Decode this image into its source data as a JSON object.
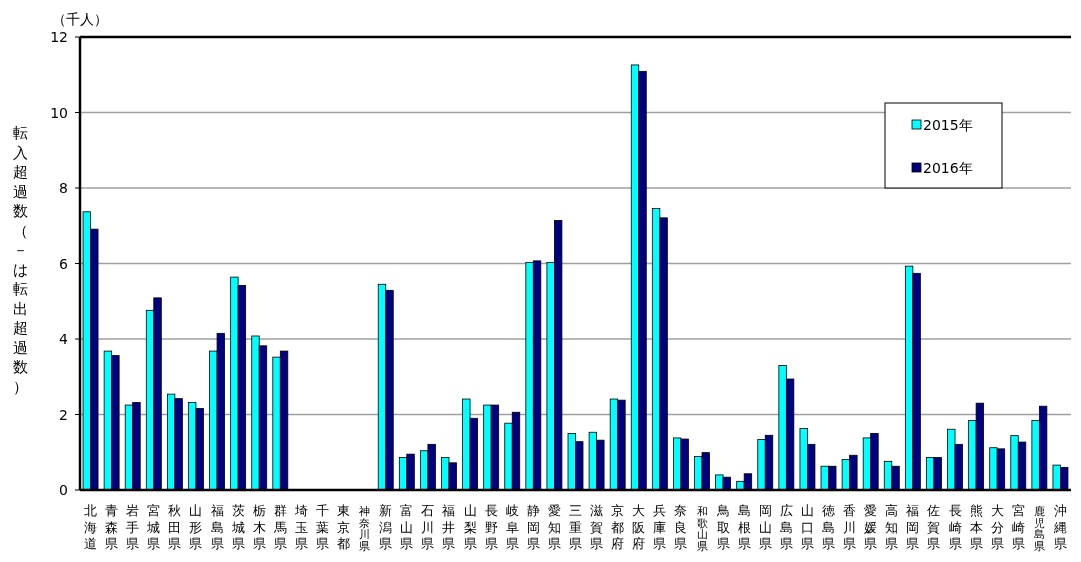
{
  "chart_data": {
    "type": "bar",
    "ylabel": "転入超過数（－は転出超過数）",
    "annotations": [
      "（千人）"
    ],
    "categories": [
      "北海道",
      "青森県",
      "岩手県",
      "宮城県",
      "秋田県",
      "山形県",
      "福島県",
      "茨城県",
      "栃木県",
      "群馬県",
      "埼玉県",
      "千葉県",
      "東京都",
      "神奈川県",
      "新潟県",
      "富山県",
      "石川県",
      "福井県",
      "山梨県",
      "長野県",
      "岐阜県",
      "静岡県",
      "愛知県",
      "三重県",
      "滋賀県",
      "京都府",
      "大阪府",
      "兵庫県",
      "奈良県",
      "和歌山県",
      "鳥取県",
      "島根県",
      "岡山県",
      "広島県",
      "山口県",
      "徳島県",
      "香川県",
      "愛媛県",
      "高知県",
      "福岡県",
      "佐賀県",
      "長崎県",
      "熊本県",
      "大分県",
      "宮崎県",
      "鹿児島県",
      "沖縄県"
    ],
    "series": [
      {
        "name": "2015年",
        "color": "#00ffff",
        "values": [
          7.37,
          3.68,
          2.25,
          4.76,
          2.54,
          2.32,
          3.68,
          5.64,
          4.08,
          3.52,
          null,
          null,
          null,
          null,
          5.45,
          0.86,
          1.04,
          0.86,
          2.41,
          2.25,
          1.77,
          6.03,
          6.03,
          1.5,
          1.53,
          2.41,
          11.26,
          7.46,
          1.38,
          0.89,
          0.4,
          0.23,
          1.34,
          3.3,
          1.63,
          0.63,
          0.81,
          1.38,
          0.76,
          5.93,
          0.86,
          1.61,
          1.84,
          1.12,
          1.44,
          1.84,
          0.66
        ]
      },
      {
        "name": "2016年",
        "color": "#000080",
        "values": [
          6.91,
          3.56,
          2.32,
          5.09,
          2.42,
          2.16,
          4.15,
          5.42,
          3.82,
          3.68,
          null,
          null,
          null,
          null,
          5.29,
          0.95,
          1.21,
          0.72,
          1.9,
          2.25,
          2.06,
          6.07,
          7.14,
          1.28,
          1.32,
          2.38,
          11.09,
          7.21,
          1.35,
          0.99,
          0.34,
          0.43,
          1.45,
          2.94,
          1.21,
          0.63,
          0.92,
          1.5,
          0.63,
          5.74,
          0.86,
          1.21,
          2.3,
          1.09,
          1.27,
          2.22,
          0.6
        ]
      }
    ],
    "ylim": [
      0,
      12
    ],
    "yticks": [
      0,
      2,
      4,
      6,
      8,
      10,
      12
    ],
    "grid": "y",
    "legend": "top right"
  }
}
